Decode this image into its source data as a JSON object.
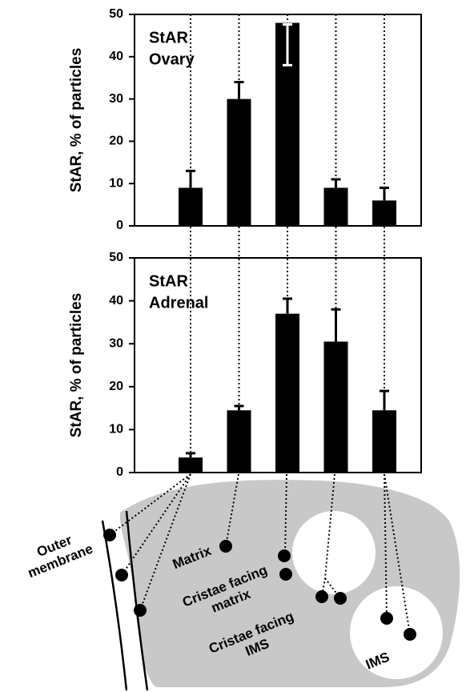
{
  "chart_data": [
    {
      "type": "bar",
      "annotation": [
        "StAR",
        "Ovary"
      ],
      "ylabel": "StAR, % of particles",
      "categories": [
        null,
        null,
        null,
        null,
        null
      ],
      "values": [
        9,
        30,
        48,
        9,
        6
      ],
      "errors": [
        4,
        4,
        10,
        2,
        3
      ],
      "color": "#000000",
      "ylim": [
        0,
        50
      ],
      "yticks": [
        0,
        10,
        20,
        30,
        40,
        50
      ]
    },
    {
      "type": "bar",
      "annotation": [
        "StAR",
        "Adrenal"
      ],
      "ylabel": "StAR, % of particles",
      "categories": [
        null,
        null,
        null,
        null,
        null
      ],
      "values": [
        3.5,
        14.5,
        37,
        30.5,
        14.5
      ],
      "errors": [
        1,
        1,
        3.5,
        7.5,
        4.5
      ],
      "color": "#000000",
      "ylim": [
        0,
        50
      ],
      "yticks": [
        0,
        10,
        20,
        30,
        40,
        50
      ]
    }
  ],
  "diagram": {
    "labels": [
      [
        "Outer",
        "membrane"
      ],
      [
        "Matrix"
      ],
      [
        "Cristae facing",
        "matrix"
      ],
      [
        "Cristae facing",
        "IMS"
      ],
      [
        "IMS"
      ]
    ]
  }
}
